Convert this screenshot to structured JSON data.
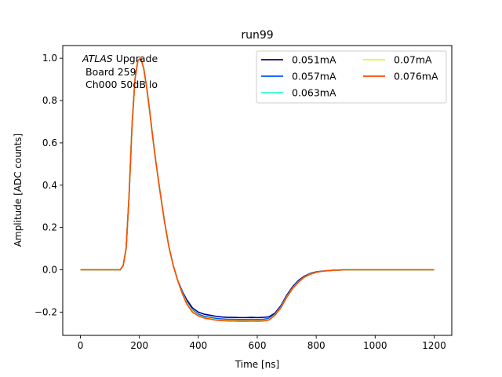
{
  "chart_data": {
    "type": "line",
    "title": "run99",
    "xlabel": "Time [ns]",
    "ylabel": "Amplitude [ADC counts]",
    "xlim": [
      -60,
      1260
    ],
    "ylim": [
      -0.31,
      1.06
    ],
    "xticks": [
      0,
      200,
      400,
      600,
      800,
      1000,
      1200
    ],
    "yticks": [
      -0.2,
      0.0,
      0.2,
      0.4,
      0.6,
      0.8,
      1.0
    ],
    "xtick_labels": [
      "0",
      "200",
      "400",
      "600",
      "800",
      "1000",
      "1200"
    ],
    "ytick_labels": [
      "−0.2",
      "0.0",
      "0.2",
      "0.4",
      "0.6",
      "0.8",
      "1.0"
    ],
    "grid": false,
    "legend_position": "top-right",
    "legend_columns": 2,
    "annotation": {
      "italic_word": "ATLAS",
      "line1_rest": " Upgrade",
      "line2": "Board 259",
      "line3": "Ch000 50dB lo"
    },
    "x": [
      0,
      20,
      40,
      60,
      80,
      100,
      120,
      135,
      145,
      155,
      165,
      175,
      185,
      195,
      205,
      215,
      225,
      235,
      245,
      255,
      270,
      285,
      300,
      315,
      330,
      345,
      360,
      380,
      400,
      420,
      440,
      460,
      480,
      500,
      520,
      540,
      560,
      580,
      600,
      620,
      640,
      660,
      680,
      700,
      720,
      740,
      760,
      780,
      800,
      820,
      840,
      860,
      880,
      900,
      950,
      1000,
      1050,
      1100,
      1150,
      1200
    ],
    "series": [
      {
        "name": "0.051mA",
        "color": "#00007f",
        "values": [
          0,
          0,
          0,
          0,
          0,
          0,
          0,
          0,
          0.02,
          0.1,
          0.35,
          0.68,
          0.9,
          0.99,
          1.0,
          0.95,
          0.86,
          0.75,
          0.63,
          0.52,
          0.37,
          0.23,
          0.11,
          0.02,
          -0.05,
          -0.1,
          -0.14,
          -0.18,
          -0.2,
          -0.21,
          -0.215,
          -0.22,
          -0.223,
          -0.225,
          -0.225,
          -0.226,
          -0.226,
          -0.225,
          -0.226,
          -0.225,
          -0.222,
          -0.205,
          -0.17,
          -0.12,
          -0.08,
          -0.05,
          -0.03,
          -0.017,
          -0.01,
          -0.006,
          -0.004,
          -0.002,
          -0.001,
          0,
          0,
          0,
          0,
          0,
          0,
          0
        ]
      },
      {
        "name": "0.057mA",
        "color": "#0055ff",
        "values": [
          0,
          0,
          0,
          0,
          0,
          0,
          0,
          0,
          0.02,
          0.1,
          0.35,
          0.68,
          0.9,
          0.99,
          1.0,
          0.95,
          0.86,
          0.75,
          0.63,
          0.52,
          0.37,
          0.23,
          0.11,
          0.02,
          -0.05,
          -0.1,
          -0.15,
          -0.19,
          -0.21,
          -0.22,
          -0.225,
          -0.23,
          -0.232,
          -0.234,
          -0.234,
          -0.235,
          -0.235,
          -0.234,
          -0.235,
          -0.234,
          -0.23,
          -0.21,
          -0.175,
          -0.125,
          -0.085,
          -0.055,
          -0.033,
          -0.019,
          -0.011,
          -0.007,
          -0.004,
          -0.002,
          -0.001,
          0,
          0,
          0,
          0,
          0,
          0,
          0
        ]
      },
      {
        "name": "0.063mA",
        "color": "#29ffce",
        "values": [
          0,
          0,
          0,
          0,
          0,
          0,
          0,
          0,
          0.02,
          0.1,
          0.35,
          0.68,
          0.9,
          0.99,
          1.0,
          0.95,
          0.86,
          0.75,
          0.63,
          0.52,
          0.37,
          0.23,
          0.11,
          0.02,
          -0.05,
          -0.11,
          -0.155,
          -0.195,
          -0.215,
          -0.225,
          -0.23,
          -0.235,
          -0.237,
          -0.239,
          -0.239,
          -0.24,
          -0.24,
          -0.239,
          -0.24,
          -0.239,
          -0.234,
          -0.213,
          -0.178,
          -0.128,
          -0.087,
          -0.056,
          -0.034,
          -0.02,
          -0.012,
          -0.007,
          -0.004,
          -0.002,
          -0.001,
          0,
          0,
          0,
          0,
          0,
          0,
          0
        ]
      },
      {
        "name": "0.07mA",
        "color": "#ceff29",
        "values": [
          0,
          0,
          0,
          0,
          0,
          0,
          0,
          0,
          0.02,
          0.1,
          0.35,
          0.68,
          0.9,
          0.99,
          1.0,
          0.95,
          0.86,
          0.75,
          0.63,
          0.52,
          0.37,
          0.23,
          0.11,
          0.02,
          -0.05,
          -0.11,
          -0.155,
          -0.195,
          -0.216,
          -0.226,
          -0.231,
          -0.236,
          -0.238,
          -0.24,
          -0.24,
          -0.241,
          -0.241,
          -0.24,
          -0.241,
          -0.24,
          -0.235,
          -0.214,
          -0.179,
          -0.129,
          -0.088,
          -0.057,
          -0.035,
          -0.02,
          -0.012,
          -0.007,
          -0.004,
          -0.002,
          -0.001,
          0,
          0,
          0,
          0,
          0,
          0,
          0
        ]
      },
      {
        "name": "0.076mA",
        "color": "#ff4a00",
        "values": [
          0,
          0,
          0,
          0,
          0,
          0,
          0,
          0,
          0.02,
          0.1,
          0.35,
          0.68,
          0.9,
          0.99,
          1.0,
          0.95,
          0.86,
          0.75,
          0.63,
          0.52,
          0.37,
          0.23,
          0.11,
          0.02,
          -0.05,
          -0.11,
          -0.16,
          -0.2,
          -0.218,
          -0.228,
          -0.233,
          -0.238,
          -0.24,
          -0.242,
          -0.242,
          -0.243,
          -0.243,
          -0.242,
          -0.243,
          -0.242,
          -0.237,
          -0.215,
          -0.18,
          -0.13,
          -0.089,
          -0.058,
          -0.035,
          -0.021,
          -0.012,
          -0.007,
          -0.004,
          -0.002,
          -0.001,
          0,
          0,
          0,
          0,
          0,
          0,
          0
        ]
      }
    ]
  }
}
